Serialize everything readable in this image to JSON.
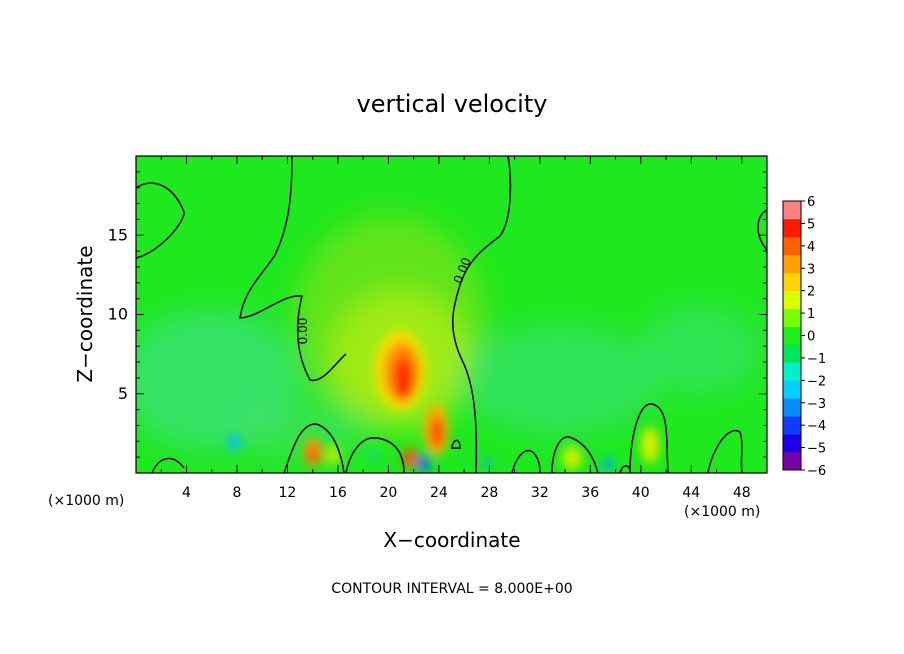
{
  "chart_data": {
    "type": "heatmap",
    "title": "vertical velocity",
    "xlabel": "X−coordinate",
    "ylabel": "Z−coordinate",
    "x_units": "(×1000 m)",
    "x_units_right": "(×1000 m)",
    "xlim": [
      0,
      50
    ],
    "ylim": [
      0,
      20
    ],
    "x_ticks": [
      4,
      8,
      12,
      16,
      20,
      24,
      28,
      32,
      36,
      40,
      44,
      48
    ],
    "y_ticks": [
      5,
      10,
      15
    ],
    "contour_label": "0.00",
    "footer": "CONTOUR INTERVAL = 8.000E+00",
    "colorbar": {
      "range": [
        -6,
        6
      ],
      "ticks": [
        "6",
        "5",
        "4",
        "3",
        "2",
        "1",
        "0",
        "−1",
        "−2",
        "−3",
        "−4",
        "−5",
        "−6"
      ],
      "colors": [
        "#7a00a8",
        "#1c00e8",
        "#0f3cff",
        "#0a8cff",
        "#00cfff",
        "#00f0c8",
        "#00e65a",
        "#1cf01c",
        "#7aff00",
        "#d8ff00",
        "#ffd400",
        "#ffa000",
        "#ff6000",
        "#ff1a00",
        "#ff8080"
      ]
    },
    "features": [
      {
        "x": 21,
        "z": 6.2,
        "w": 0.8,
        "kind": "updraft core"
      },
      {
        "x": 24,
        "z": 2.6,
        "w": 0.3,
        "kind": "updraft"
      },
      {
        "x": 13.8,
        "z": 1.2,
        "w": 0.3,
        "kind": "updraft"
      },
      {
        "x": 21.7,
        "z": 1.0,
        "w": 0.25,
        "kind": "updraft"
      },
      {
        "x": 7.8,
        "z": 1.5,
        "w": -0.2,
        "kind": "downdraft"
      },
      {
        "x": 23,
        "z": 0.5,
        "w": -0.4,
        "kind": "downdraft"
      },
      {
        "x": 37.5,
        "z": 0.6,
        "w": -0.25,
        "kind": "downdraft"
      }
    ]
  }
}
